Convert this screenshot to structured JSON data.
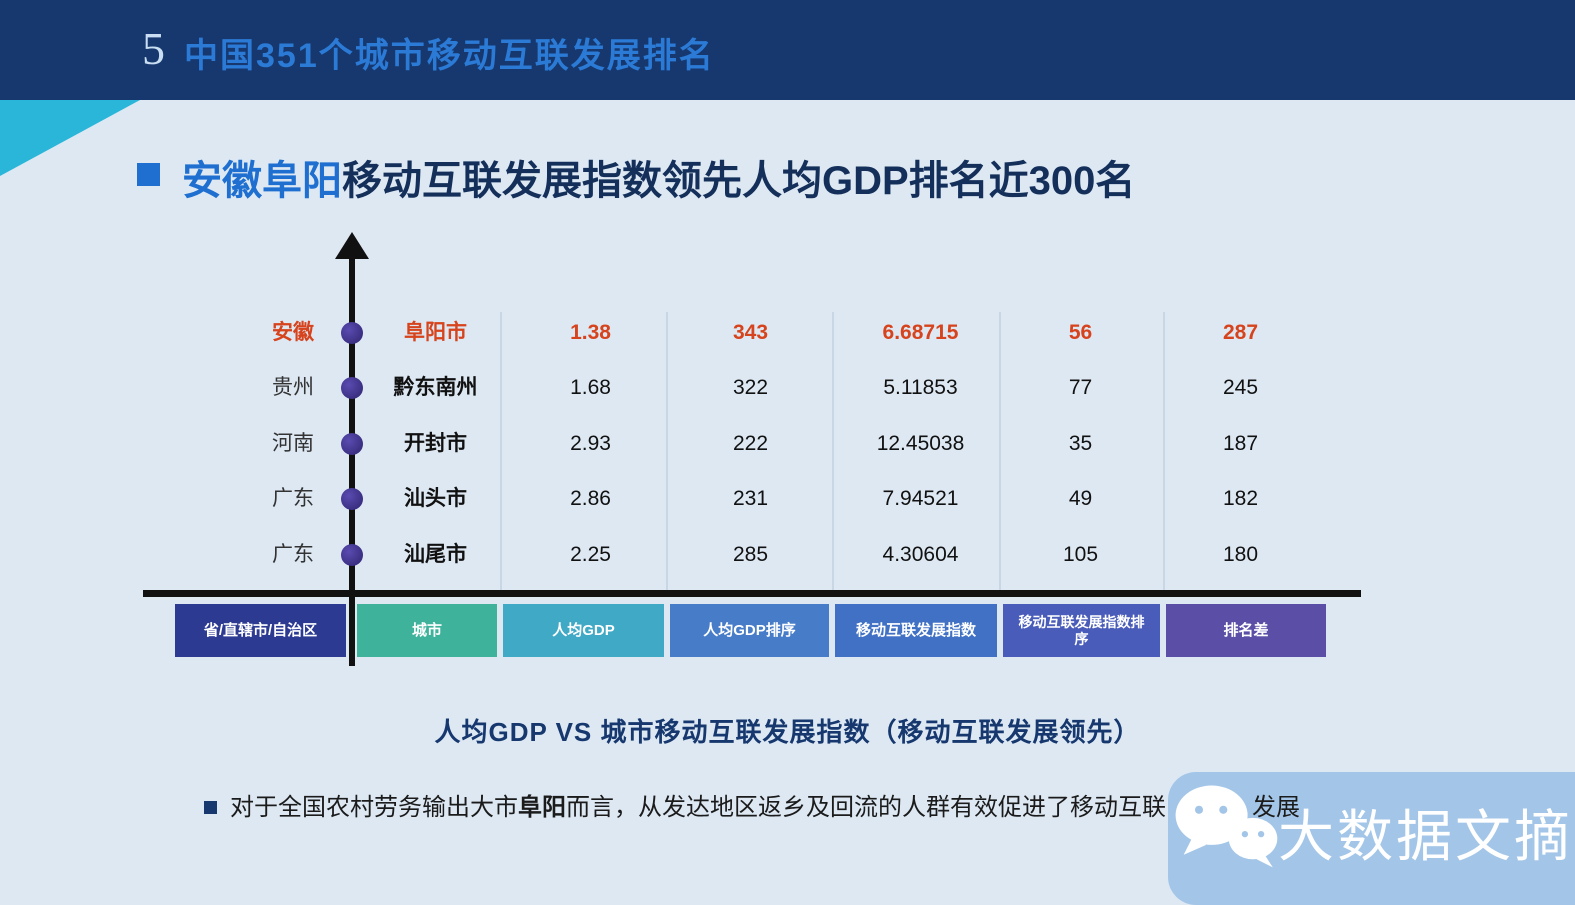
{
  "page": {
    "slide_number": "5",
    "banner_title": "中国351个城市移动互联发展排名"
  },
  "headline": {
    "highlight": "安徽阜阳",
    "rest": "移动互联发展指数领先人均GDP排名近300名"
  },
  "chart_data": {
    "type": "table",
    "title": "人均GDP VS 城市移动互联发展指数（移动互联发展领先）",
    "columns": [
      "省/直辖市/自治区",
      "城市",
      "人均GDP",
      "人均GDP排序",
      "移动互联发展指数",
      "移动互联发展指数排序",
      "排名差"
    ],
    "rows": [
      {
        "province": "安徽",
        "city": "阜阳市",
        "gdp": "1.38",
        "gdp_rank": "343",
        "index": "6.68715",
        "index_rank": "56",
        "diff": "287",
        "highlight": true
      },
      {
        "province": "贵州",
        "city": "黔东南州",
        "gdp": "1.68",
        "gdp_rank": "322",
        "index": "5.11853",
        "index_rank": "77",
        "diff": "245",
        "highlight": false
      },
      {
        "province": "河南",
        "city": "开封市",
        "gdp": "2.93",
        "gdp_rank": "222",
        "index": "12.45038",
        "index_rank": "35",
        "diff": "187",
        "highlight": false
      },
      {
        "province": "广东",
        "city": "汕头市",
        "gdp": "2.86",
        "gdp_rank": "231",
        "index": "7.94521",
        "index_rank": "49",
        "diff": "182",
        "highlight": false
      },
      {
        "province": "广东",
        "city": "汕尾市",
        "gdp": "2.25",
        "gdp_rank": "285",
        "index": "4.30604",
        "index_rank": "105",
        "diff": "180",
        "highlight": false
      }
    ],
    "header_colors": [
      "#2d3a92",
      "#3fb29b",
      "#3fa9c6",
      "#477cc9",
      "#4171c4",
      "#4a5cb9",
      "#5a4ea6"
    ],
    "highlight_color": "#d6431c",
    "legend_position": "bottom-axis",
    "grid": "column-separators-only"
  },
  "note": {
    "prefix": "对于全国农村劳务输出大市",
    "bold": "阜阳",
    "middle": "而言，从发达地区返乡及回流的人群有效促进了移动互联",
    "tail": "发展"
  },
  "watermark": {
    "icon": "wechat-icon",
    "label": "大数据文摘"
  },
  "colors": {
    "banner_bg": "#16386e",
    "banner_title": "#2b7ad6",
    "corner_cyan": "#29b6d8",
    "headline_blue": "#1e6fd0",
    "headline_navy": "#132f5a",
    "page_bg": "#dde8f3",
    "watermark_bg": "#a3c6e8",
    "axis_dot": "#3a2f86"
  }
}
